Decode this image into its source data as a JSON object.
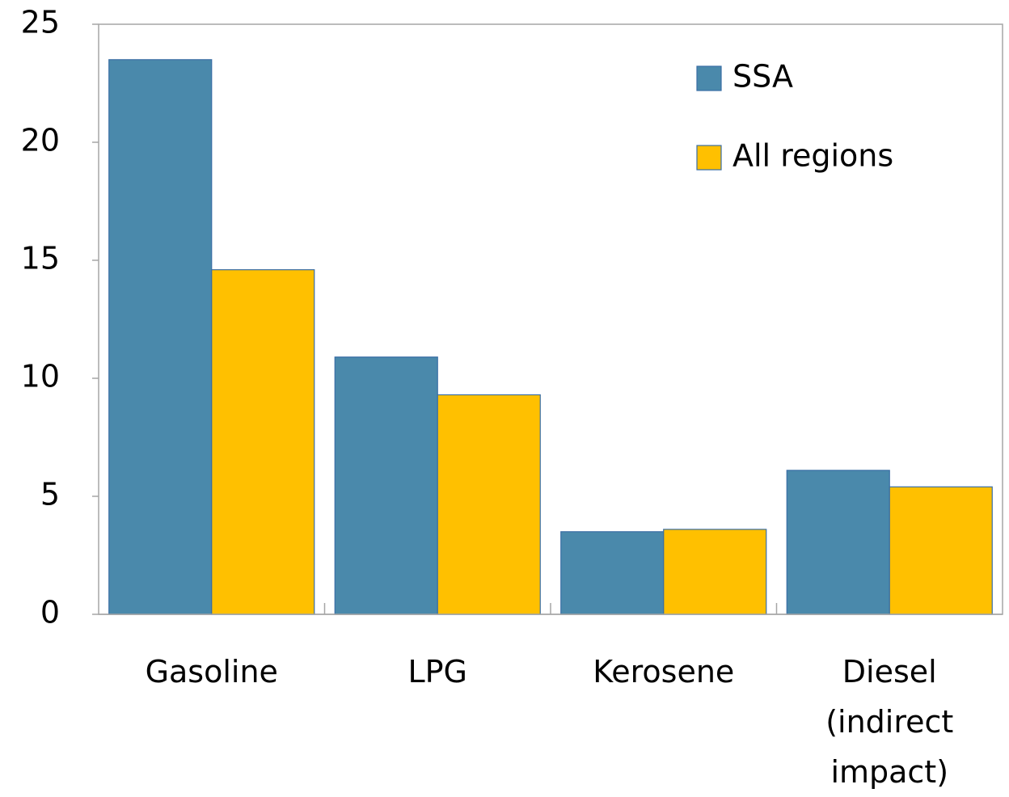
{
  "chart_data": {
    "type": "bar",
    "categories": [
      "Gasoline",
      "LPG",
      "Kerosene",
      "Diesel (indirect impact)"
    ],
    "series": [
      {
        "name": "SSA",
        "color": "#4a89ab",
        "values": [
          23.5,
          10.9,
          3.5,
          6.1
        ]
      },
      {
        "name": "All regions",
        "color": "#ffc000",
        "values": [
          14.6,
          9.3,
          3.6,
          5.4
        ]
      }
    ],
    "ylim": [
      0,
      25
    ],
    "yticks": [
      0,
      5,
      10,
      15,
      20,
      25
    ],
    "legend": "upper right"
  }
}
